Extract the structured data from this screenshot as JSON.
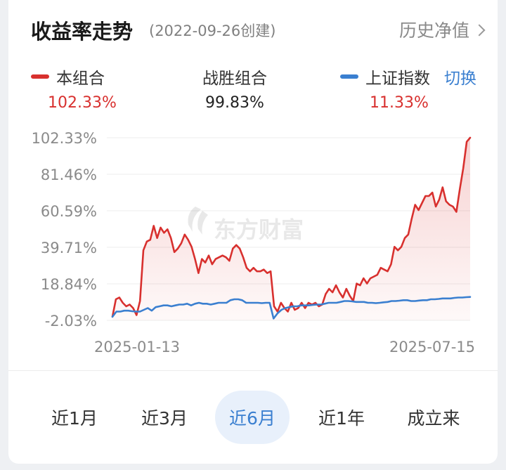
{
  "header": {
    "title": "收益率走势",
    "created": "(2022-09-26创建)",
    "history_link": "历史净值"
  },
  "legend": {
    "portfolio": {
      "label": "本组合",
      "value": "102.33%",
      "color": "#d8302e"
    },
    "beat": {
      "label": "战胜组合",
      "value": "99.83%"
    },
    "index": {
      "label": "上证指数",
      "value": "11.33%",
      "color": "#3a7fd0"
    },
    "switch_label": "切换"
  },
  "watermark": "东方财富",
  "chart_data": {
    "type": "line",
    "y_tick_labels": [
      "102.33%",
      "81.46%",
      "60.59%",
      "39.71%",
      "18.84%",
      "-2.03%"
    ],
    "ylim": [
      -2.03,
      102.33
    ],
    "x_tick_labels": [
      "2025-01-13",
      "2025-07-15"
    ],
    "grid": true,
    "series": [
      {
        "name": "本组合",
        "color": "#d8302e",
        "area": true,
        "values": [
          0,
          10,
          11,
          8,
          6,
          7,
          5,
          1,
          9,
          38,
          43,
          44,
          52,
          45,
          51,
          48,
          50,
          45,
          37,
          39,
          42,
          47,
          44,
          40,
          33,
          25,
          33,
          31,
          35,
          30,
          33,
          34,
          35,
          34,
          32,
          39,
          41,
          39,
          34,
          28,
          26,
          28,
          26,
          26,
          27,
          25,
          26,
          6,
          3,
          8,
          5,
          3,
          8,
          4,
          5,
          8,
          5,
          8,
          7,
          8,
          6,
          7,
          13,
          16,
          14,
          18,
          14,
          11,
          16,
          12,
          9,
          19,
          18,
          22,
          19,
          22,
          23,
          24,
          28,
          27,
          26,
          30,
          40,
          38,
          40,
          45,
          47,
          56,
          64,
          61,
          65,
          69,
          69,
          71,
          63,
          67,
          74,
          66,
          64,
          63,
          60,
          73,
          85,
          100,
          102.33
        ]
      },
      {
        "name": "上证指数",
        "color": "#3a7fd0",
        "area": false,
        "values": [
          0,
          3,
          3,
          3.5,
          3.5,
          3.2,
          3,
          3,
          4,
          5,
          3.5,
          5.5,
          6,
          6.5,
          6.5,
          6,
          6.5,
          7,
          7,
          7.5,
          6.5,
          7.5,
          8,
          7.5,
          7.5,
          7,
          7.5,
          8,
          8,
          8,
          9.5,
          10,
          10,
          9.5,
          8,
          8,
          8,
          8,
          7.8,
          8,
          8,
          -1,
          2,
          4,
          5,
          5.5,
          6,
          6,
          6.5,
          6.5,
          6.5,
          6.8,
          7,
          7,
          7.5,
          8,
          8,
          8,
          8.5,
          9,
          9,
          8.8,
          8.5,
          8.5,
          8.5,
          8,
          8,
          7.8,
          8,
          8.3,
          8.5,
          9,
          9,
          9.2,
          9.5,
          9.5,
          9,
          9,
          9.3,
          9.5,
          9.5,
          10,
          10,
          10.2,
          10.5,
          10.5,
          10.5,
          10.8,
          11,
          11,
          11.2,
          11.33
        ]
      }
    ]
  },
  "tabs": [
    {
      "label": "近1月",
      "active": false
    },
    {
      "label": "近3月",
      "active": false
    },
    {
      "label": "近6月",
      "active": true
    },
    {
      "label": "近1年",
      "active": false
    },
    {
      "label": "成立来",
      "active": false
    }
  ]
}
